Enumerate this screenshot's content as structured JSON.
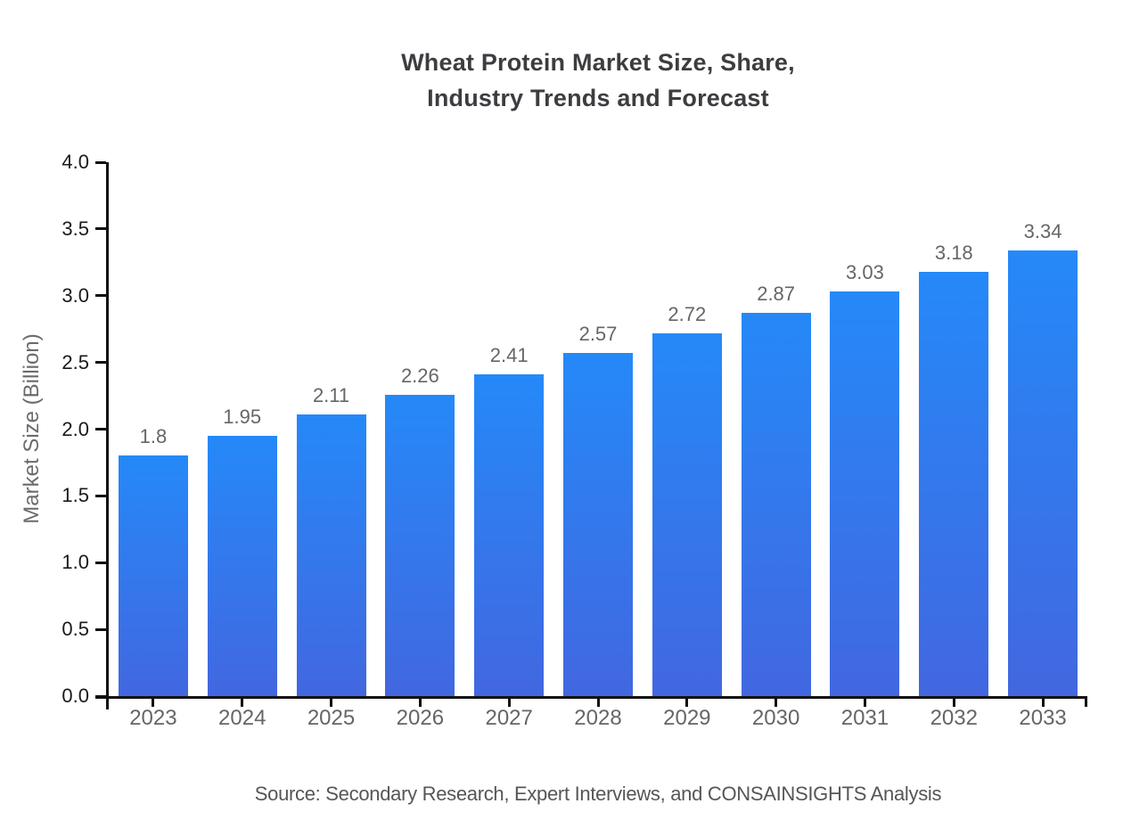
{
  "chart_data": {
    "type": "bar",
    "title": "Wheat Protein Market Size, Share, Industry Trends and Forecast",
    "title_lines": [
      "Wheat Protein Market Size, Share,",
      "Industry Trends and Forecast"
    ],
    "categories": [
      "2023",
      "2024",
      "2025",
      "2026",
      "2027",
      "2028",
      "2029",
      "2030",
      "2031",
      "2032",
      "2033"
    ],
    "values": [
      1.8,
      1.95,
      2.11,
      2.26,
      2.41,
      2.57,
      2.72,
      2.87,
      3.03,
      3.18,
      3.34
    ],
    "value_labels": [
      "1.8",
      "1.95",
      "2.11",
      "2.26",
      "2.41",
      "2.57",
      "2.72",
      "2.87",
      "3.03",
      "3.18",
      "3.34"
    ],
    "xlabel": "",
    "ylabel": "Market Size (Billion)",
    "ylim": [
      0.0,
      4.0
    ],
    "ytick_step": 0.5,
    "ytick_labels": [
      "0.0",
      "0.5",
      "1.0",
      "1.5",
      "2.0",
      "2.5",
      "3.0",
      "3.5",
      "4.0"
    ],
    "grid": false,
    "legend": "none",
    "source_note": "Source: Secondary Research, Expert Interviews, and CONSAINSIGHTS Analysis",
    "colors": {
      "bar_gradient_top": "#2589f8",
      "bar_gradient_bottom": "#4267e0",
      "axis": "#111111",
      "ytick_label": "#1a1a1a",
      "xtick_label": "#666666",
      "value_label": "#666666",
      "title": "#3b3d40",
      "source": "#565656",
      "background": "#ffffff"
    }
  }
}
